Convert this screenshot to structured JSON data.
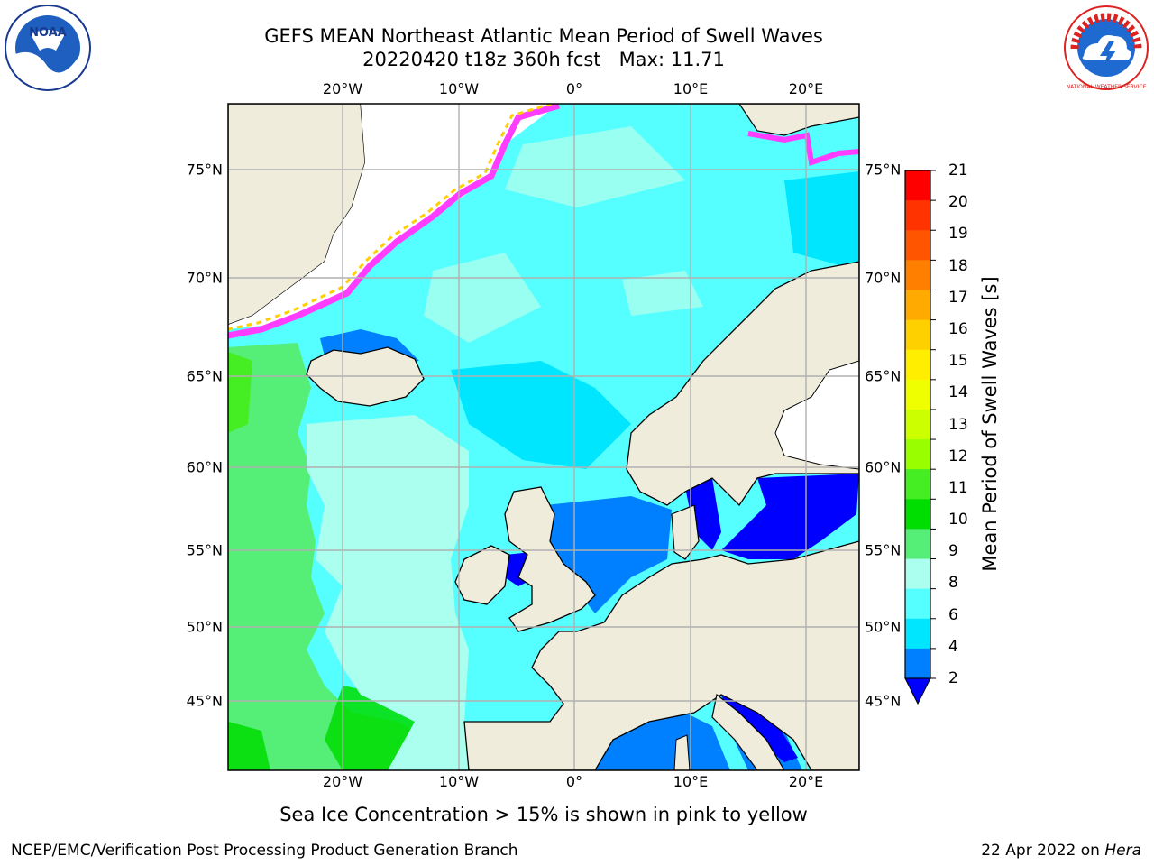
{
  "title": {
    "line1": "GEFS MEAN Northeast Atlantic Mean Period of Swell Waves",
    "line2": "20220420 t18z 360h fcst   Max: 11.71"
  },
  "map": {
    "lon_labels": [
      "20°W",
      "10°W",
      "0°",
      "10°E",
      "20°E"
    ],
    "lat_labels": [
      "75°N",
      "70°N",
      "65°N",
      "60°N",
      "55°N",
      "50°N",
      "45°N"
    ],
    "land_color": "#efecdc",
    "grid_color": "#b0b0b0",
    "ice_colors": [
      "#ff3cff",
      "#ffd000",
      "#fff080"
    ]
  },
  "colorbar": {
    "label": "Mean Period of Swell Waves [s]",
    "ticks": [
      "21",
      "20",
      "19",
      "18",
      "17",
      "16",
      "15",
      "14",
      "13",
      "12",
      "11",
      "10",
      "9",
      "8",
      "6",
      "4",
      "2"
    ],
    "colors_top_to_bottom": [
      "#ff0000",
      "#ff3300",
      "#ff5500",
      "#ff8000",
      "#ffaa00",
      "#ffd000",
      "#ffee00",
      "#f0ff00",
      "#ccff00",
      "#99ff00",
      "#44ee22",
      "#00dd00",
      "#55ee77",
      "#aaffee",
      "#55ffff",
      "#00e6ff",
      "#0080ff"
    ],
    "extend_color": "#0000ff"
  },
  "footnote": "Sea Ice Concentration > 15% is shown in pink to yellow",
  "credits": {
    "left": "NCEP/EMC/Verification Post Processing Product Generation Branch",
    "right_prefix": "22 Apr 2022 on ",
    "right_machine": "Hera"
  },
  "logos": {
    "noaa_text": "NOAA",
    "nws_text": "NATIONAL WEATHER SERVICE"
  }
}
